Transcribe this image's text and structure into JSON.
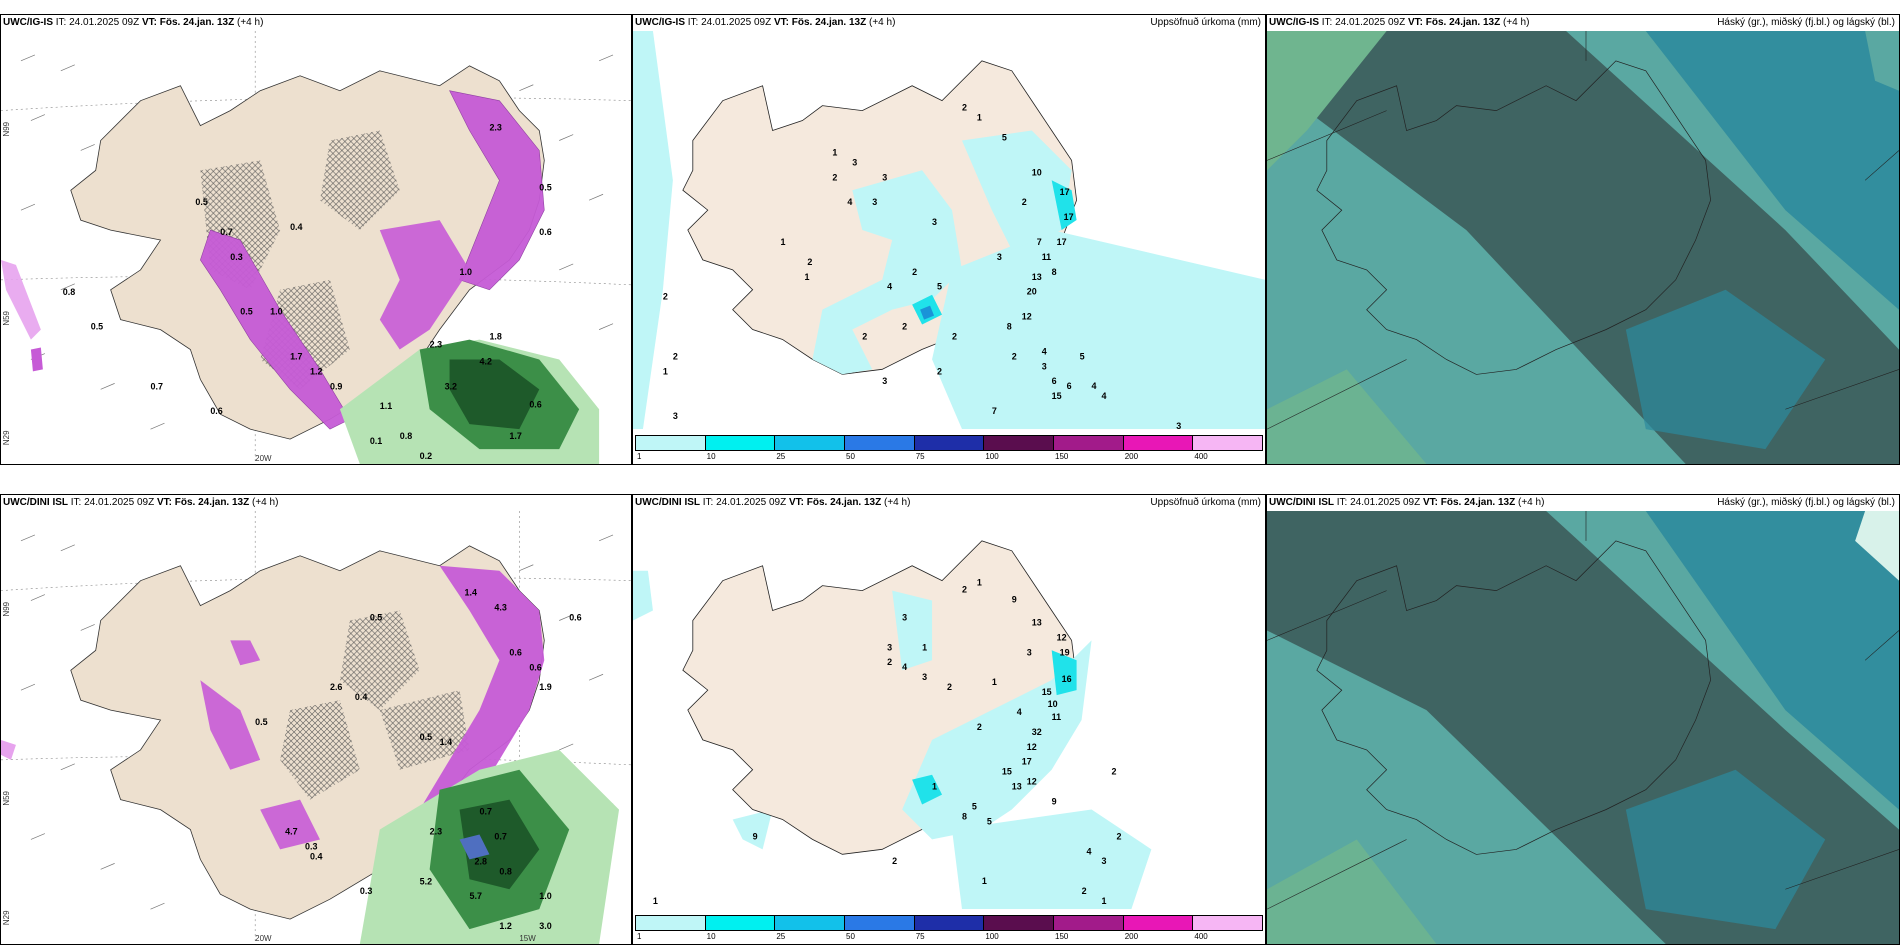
{
  "colors": {
    "land": "#ede0cf",
    "land_precip_a": "#f5e9dd",
    "sea": "#ffffff",
    "precip_light": "#bff6f7",
    "precip_mid": "#20e2ea",
    "precip_strong": "#1a94d8",
    "snow_magenta": "#c65bd6",
    "snow_light": "#e7a3ee",
    "rain_green_dark": "#1e5a2a",
    "rain_green_mid": "#3c8f48",
    "rain_green_light": "#b6e3b4",
    "cloud_dark": "#3f6462",
    "cloud_teal": "#5aa8a2",
    "cloud_blue": "#2c8a9e",
    "cloud_green": "#6fb58f"
  },
  "panels": {
    "top_left": {
      "model": "UWC/IG-IS",
      "it": "IT: 24.01.2025 09Z",
      "vt_label": "VT:",
      "vt": "Fös. 24.jan. 13Z",
      "lead": "(+4 h)",
      "axis": {
        "lat1": "N99",
        "lat2": "N59",
        "lat3": "N29",
        "lon": "20W"
      },
      "labels": [
        "2.3",
        "0.7",
        "0.8",
        "0.5",
        "0.4",
        "0.3",
        "1.0",
        "0.5",
        "1.7",
        "1.2",
        "0.9",
        "1.1",
        "1.0",
        "0.6",
        "2.3",
        "4.2",
        "1.8",
        "3.2",
        "0.6",
        "1.7",
        "0.5",
        "0.8",
        "0.2",
        "0.1",
        "0.6",
        "0.5",
        "0.7"
      ]
    },
    "top_mid": {
      "model": "UWC/IG-IS",
      "it": "IT: 24.01.2025 09Z",
      "vt_label": "VT:",
      "vt": "Fös. 24.jan. 13Z",
      "lead": "(+4 h)",
      "title_right": "Uppsöfnuð úrkoma (mm)",
      "labels": [
        "2",
        "1",
        "5",
        "1",
        "2",
        "3",
        "3",
        "4",
        "3",
        "3",
        "10",
        "2",
        "17",
        "17",
        "7",
        "17",
        "3",
        "11",
        "8",
        "13",
        "1",
        "2",
        "1",
        "2",
        "4",
        "5",
        "20",
        "12",
        "8",
        "2",
        "2",
        "2",
        "4",
        "2",
        "3",
        "2",
        "3",
        "5",
        "15",
        "6",
        "6",
        "4",
        "4",
        "7",
        "3",
        "1",
        "2",
        "2",
        "3"
      ]
    },
    "top_right": {
      "model": "UWC/IG-IS",
      "it": "IT: 24.01.2025 09Z",
      "vt_label": "VT:",
      "vt": "Fös. 24.jan. 13Z",
      "lead": "(+4 h)",
      "title_right": "Háský (gr.), miðský (fj.bl.) og lágský (bl.)"
    },
    "bot_left": {
      "model": "UWC/DINI ISL",
      "it": "IT: 24.01.2025 09Z",
      "vt_label": "VT:",
      "vt": "Fös. 24.jan. 13Z",
      "lead": "(+4 h)",
      "axis": {
        "lat1": "N99",
        "lat2": "N59",
        "lat3": "N29",
        "lon": "20W",
        "lon2": "15W"
      },
      "labels": [
        "1.4",
        "4.3",
        "0.6",
        "0.5",
        "2.6",
        "0.6",
        "0.4",
        "0.5",
        "1.4",
        "0.7",
        "0.3",
        "2.3",
        "0.7",
        "4.7",
        "0.3",
        "0.4",
        "2.8",
        "0.8",
        "5.2",
        "5.7",
        "1.0",
        "1.2",
        "3.0",
        "0.6",
        "1.9",
        "0.5"
      ]
    },
    "bot_mid": {
      "model": "UWC/DINI ISL",
      "it": "IT: 24.01.2025 09Z",
      "vt_label": "VT:",
      "vt": "Fös. 24.jan. 13Z",
      "lead": "(+4 h)",
      "title_right": "Uppsöfnuð úrkoma (mm)",
      "labels": [
        "2",
        "1",
        "9",
        "3",
        "3",
        "1",
        "13",
        "2",
        "4",
        "12",
        "3",
        "3",
        "19",
        "16",
        "2",
        "1",
        "15",
        "10",
        "4",
        "11",
        "2",
        "32",
        "12",
        "17",
        "15",
        "12",
        "2",
        "13",
        "1",
        "5",
        "9",
        "8",
        "5",
        "4",
        "3",
        "2",
        "2",
        "1",
        "1",
        "9",
        "2",
        "1"
      ]
    },
    "bot_right": {
      "model": "UWC/DINI ISL",
      "it": "IT: 24.01.2025 09Z",
      "vt_label": "VT:",
      "vt": "Fös. 24.jan. 13Z",
      "lead": "(+4 h)",
      "title_right": "Háský (gr.), miðský (fj.bl.) og lágský (bl.)"
    }
  },
  "legend": {
    "steps": [
      {
        "label": "1",
        "color": "#bff6f7"
      },
      {
        "label": "10",
        "color": "#00f0f0"
      },
      {
        "label": "25",
        "color": "#12c1ea"
      },
      {
        "label": "50",
        "color": "#2a79e6"
      },
      {
        "label": "75",
        "color": "#1e2ea8"
      },
      {
        "label": "100",
        "color": "#5a0d4e"
      },
      {
        "label": "150",
        "color": "#a21b8a"
      },
      {
        "label": "200",
        "color": "#e817b6"
      },
      {
        "label": "400",
        "color": "#f6b6f4"
      }
    ]
  }
}
